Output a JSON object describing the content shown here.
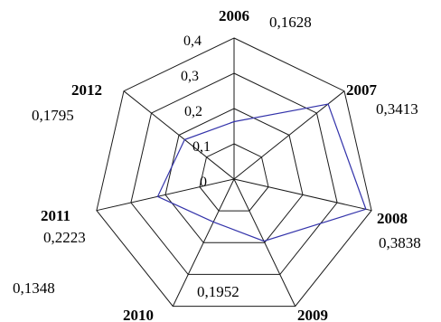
{
  "chart_data": {
    "type": "radar",
    "categories": [
      "2006",
      "2007",
      "2008",
      "2009",
      "2010",
      "2011",
      "2012"
    ],
    "series": [
      {
        "values": [
          0.1628,
          0.3413,
          0.3838,
          0.1952,
          0.1348,
          0.2223,
          0.1795
        ],
        "color": "#3333aa"
      }
    ],
    "value_labels": [
      "0,1628",
      "0,3413",
      "0,3838",
      "0,1952",
      "0,1348",
      "0,2223",
      "0,1795"
    ],
    "radial_ticks": [
      0,
      0.1,
      0.2,
      0.3,
      0.4
    ],
    "radial_tick_labels": [
      "0",
      "0,1",
      "0,2",
      "0,3",
      "0,4"
    ],
    "rmax": 0.4,
    "grid": true
  }
}
